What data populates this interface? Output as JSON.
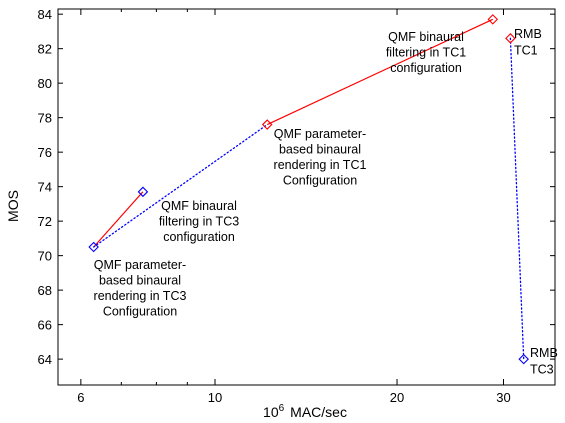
{
  "chart_data": {
    "type": "scatter",
    "xlabel_prefix": "10",
    "xlabel_exponent": "6",
    "xlabel_suffix": "MAC/sec",
    "ylabel": "MOS",
    "x_scale": "log",
    "xlim": [
      5.5,
      36.5
    ],
    "ylim": [
      62.5,
      84.3
    ],
    "x_ticks": [
      6,
      10,
      20,
      30
    ],
    "y_ticks": [
      64,
      66,
      68,
      70,
      72,
      74,
      76,
      78,
      80,
      82,
      84
    ],
    "grid": false,
    "series": [
      {
        "color": "#ff0000",
        "line": "solid",
        "points": [
          {
            "x": 6.3,
            "y": 70.5
          },
          {
            "x": 7.6,
            "y": 73.7
          }
        ]
      },
      {
        "color": "#ff0000",
        "line": "solid",
        "points": [
          {
            "x": 12.2,
            "y": 77.6
          },
          {
            "x": 28.8,
            "y": 83.7
          }
        ]
      },
      {
        "color": "#0000ff",
        "line": "dotted",
        "points": [
          {
            "x": 6.3,
            "y": 70.5
          },
          {
            "x": 12.2,
            "y": 77.6
          }
        ]
      },
      {
        "color": "#0000ff",
        "line": "dotted",
        "points": [
          {
            "x": 30.8,
            "y": 82.6
          },
          {
            "x": 32.4,
            "y": 64.0
          }
        ]
      }
    ],
    "markers": [
      {
        "x": 6.3,
        "y": 70.5,
        "color": "#0000ff"
      },
      {
        "x": 7.6,
        "y": 73.7,
        "color": "#0000ff"
      },
      {
        "x": 12.2,
        "y": 77.6,
        "color": "#ff0000"
      },
      {
        "x": 28.8,
        "y": 83.7,
        "color": "#ff0000"
      },
      {
        "x": 30.8,
        "y": 82.6,
        "color": "#ff0000"
      },
      {
        "x": 32.4,
        "y": 64.0,
        "color": "#0000ff"
      }
    ],
    "annotations": [
      {
        "lines": [
          "QMF binaural",
          "filtering in TC1",
          "configuration"
        ]
      },
      {
        "lines": [
          "RMB",
          "TC1"
        ]
      },
      {
        "lines": [
          "QMF parameter-",
          "based binaural",
          "rendering in TC1",
          "Configuration"
        ]
      },
      {
        "lines": [
          "QMF binaural",
          "filtering in TC3",
          "configuration"
        ]
      },
      {
        "lines": [
          "QMF parameter-",
          "based binaural",
          "rendering in TC3",
          "Configuration"
        ]
      },
      {
        "lines": [
          "RMB",
          "TC3"
        ]
      }
    ]
  }
}
